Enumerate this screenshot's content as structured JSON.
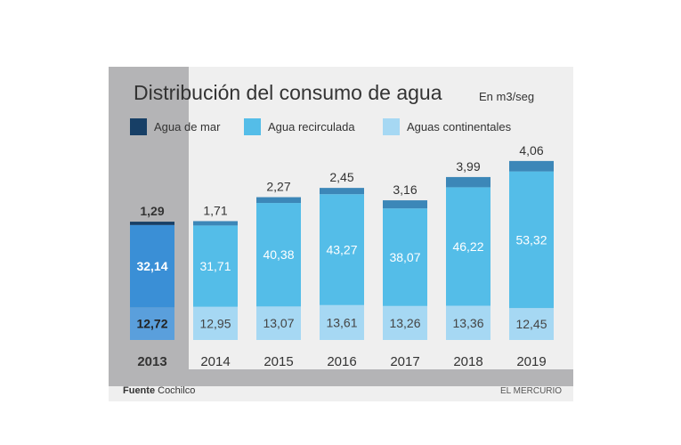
{
  "chart_data": {
    "type": "bar",
    "stacked": true,
    "title": "Distribución del consumo de agua",
    "units": "En m3/seg",
    "categories": [
      "2013",
      "2014",
      "2015",
      "2016",
      "2017",
      "2018",
      "2019"
    ],
    "highlight": "2013",
    "series": [
      {
        "name": "Aguas continentales",
        "color": "#a6d8f3",
        "values": [
          12.72,
          12.95,
          13.07,
          13.61,
          13.26,
          13.36,
          12.45
        ],
        "labels": [
          "12,72",
          "12,95",
          "13,07",
          "13,61",
          "13,26",
          "13,36",
          "12,45"
        ]
      },
      {
        "name": "Agua recirculada",
        "color": "#54bde8",
        "values": [
          32.14,
          31.71,
          40.38,
          43.27,
          38.07,
          46.22,
          53.32
        ],
        "labels": [
          "32,14",
          "31,71",
          "40,38",
          "43,27",
          "38,07",
          "46,22",
          "53,32"
        ]
      },
      {
        "name": "Agua de mar",
        "color": "#1f4f7e",
        "values": [
          1.29,
          1.71,
          2.27,
          2.45,
          3.16,
          3.99,
          4.06
        ],
        "labels": [
          "1,29",
          "1,71",
          "2,27",
          "2,45",
          "3,16",
          "3,99",
          "4,06"
        ]
      }
    ],
    "legend": [
      "Agua de mar",
      "Agua recirculada",
      "Aguas continentales"
    ],
    "source_label": "Fuente",
    "source": "Cochilco",
    "credit": "EL MERCURIO"
  }
}
